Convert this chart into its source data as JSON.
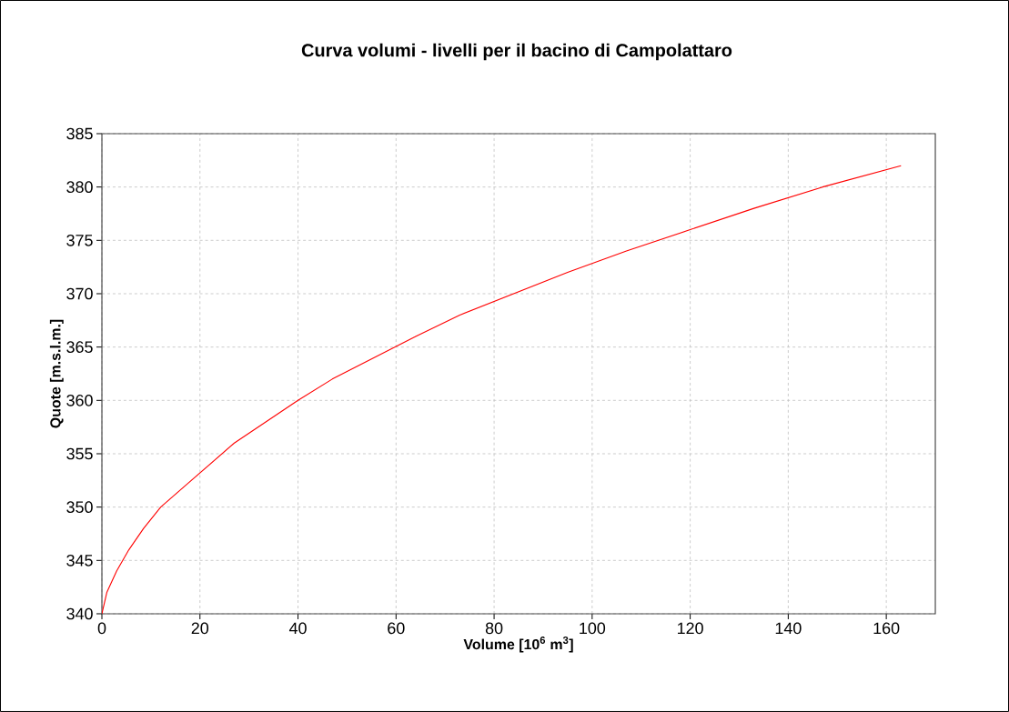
{
  "chart_data": {
    "type": "line",
    "title": "Curva volumi - livelli per il bacino di Campolattaro",
    "xlabel": "Volume [10$^{6}$ m$^{3}$]",
    "ylabel": "Quote [m.s.l.m.]",
    "x": [
      0,
      1,
      3,
      5.5,
      8.5,
      12,
      17,
      27,
      40,
      47,
      64,
      73,
      95,
      107,
      120,
      133,
      147,
      163
    ],
    "series": [
      {
        "color": "#ff0000",
        "values": [
          340,
          342,
          344,
          346,
          348,
          350,
          352,
          356,
          360,
          362,
          366,
          368,
          372,
          374,
          376,
          378,
          380,
          382
        ]
      }
    ],
    "xlim": [
      0,
      170
    ],
    "xticks": [
      0,
      20,
      40,
      60,
      80,
      100,
      120,
      140,
      160
    ],
    "ylim": [
      340,
      385
    ],
    "yticks": [
      340,
      345,
      350,
      355,
      360,
      365,
      370,
      375,
      380,
      385
    ],
    "grid": true,
    "marker": "none",
    "line_style": "solid"
  }
}
